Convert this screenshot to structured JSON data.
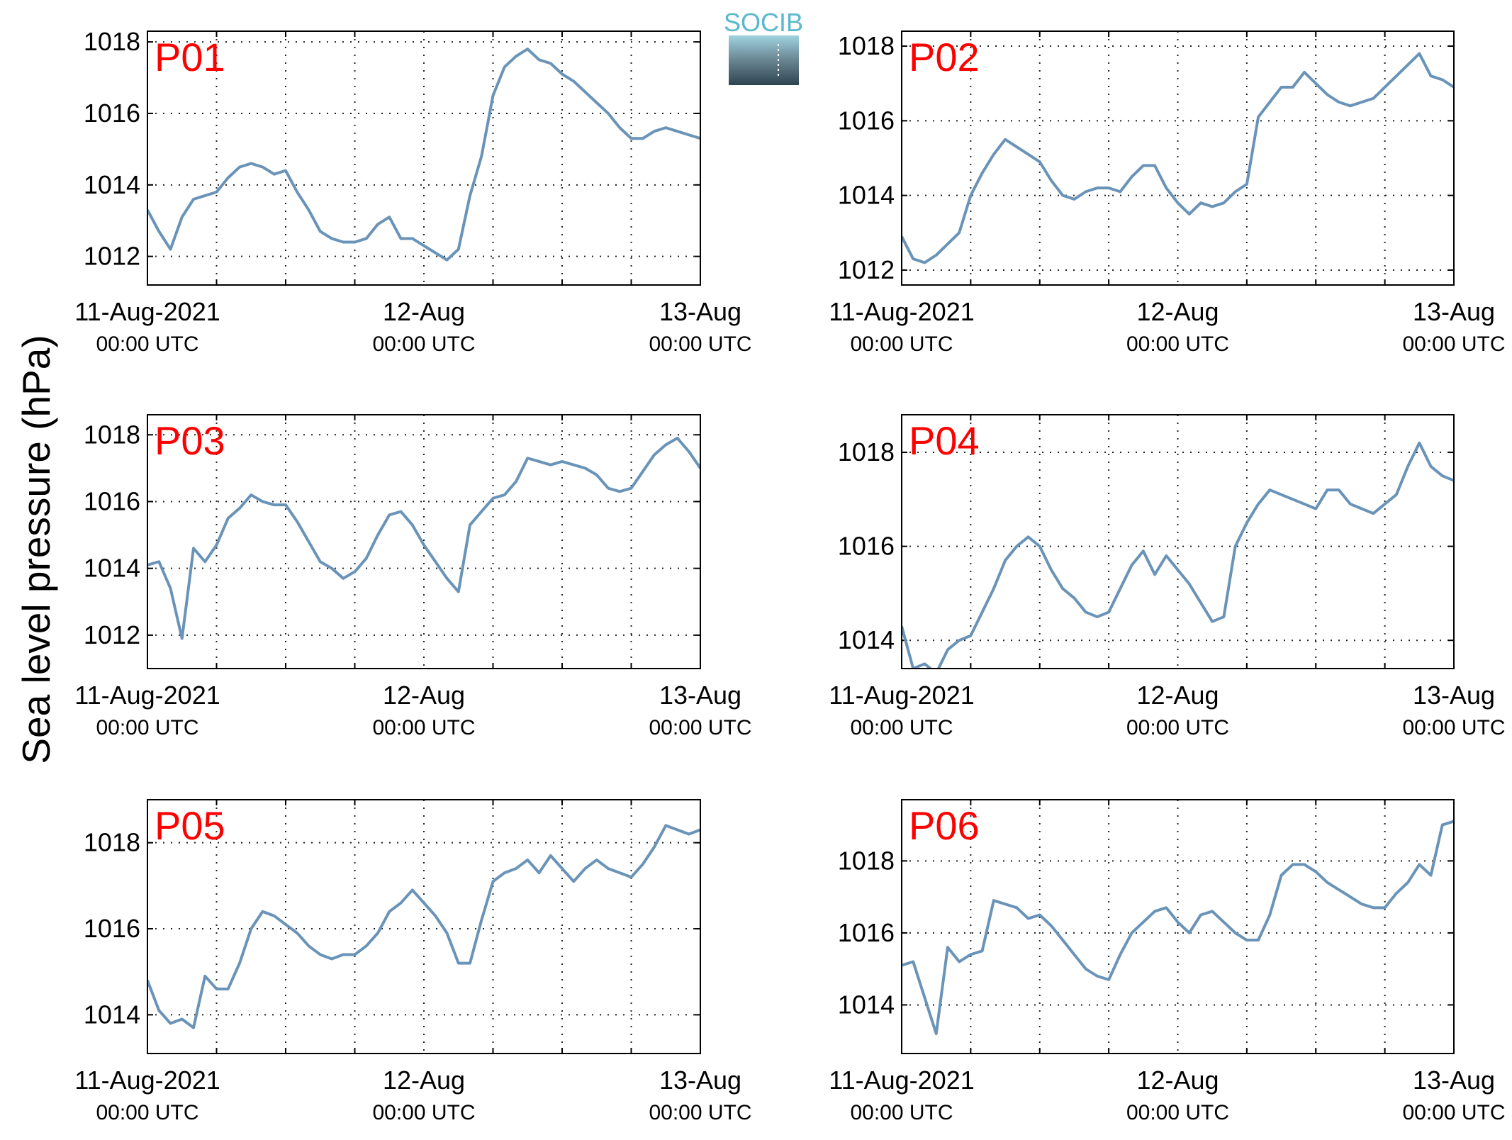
{
  "logo": "SOCIB",
  "ylabel": "Sea level pressure (hPa)",
  "chart_data": [
    {
      "type": "line",
      "title": "P01",
      "title_color": "#ff0000",
      "color": "#6a93b8",
      "grid": true,
      "xlim": [
        0,
        48
      ],
      "ylim": [
        1011.2,
        1018.3
      ],
      "yticks": [
        1012,
        1014,
        1016,
        1018
      ],
      "xticks": [
        {
          "value": 0,
          "label": "11-Aug-2021",
          "sublabel": "00:00 UTC"
        },
        {
          "value": 24,
          "label": "12-Aug",
          "sublabel": "00:00 UTC"
        },
        {
          "value": 48,
          "label": "13-Aug",
          "sublabel": "00:00 UTC"
        }
      ],
      "xminor": [
        6,
        12,
        18,
        30,
        36,
        42
      ],
      "x": [
        0,
        1,
        2,
        3,
        4,
        5,
        6,
        7,
        8,
        9,
        10,
        11,
        12,
        13,
        14,
        15,
        16,
        17,
        18,
        19,
        20,
        21,
        22,
        23,
        24,
        25,
        26,
        27,
        28,
        29,
        30,
        31,
        32,
        33,
        34,
        35,
        36,
        37,
        38,
        39,
        40,
        41,
        42,
        43,
        44,
        45,
        46,
        47,
        48
      ],
      "values": [
        1013.3,
        1012.7,
        1012.2,
        1013.1,
        1013.6,
        1013.7,
        1013.8,
        1014.2,
        1014.5,
        1014.6,
        1014.5,
        1014.3,
        1014.4,
        1013.8,
        1013.3,
        1012.7,
        1012.5,
        1012.4,
        1012.4,
        1012.5,
        1012.9,
        1013.1,
        1012.5,
        1012.5,
        1012.3,
        1012.1,
        1011.9,
        1012.2,
        1013.7,
        1014.8,
        1016.5,
        1017.3,
        1017.6,
        1017.8,
        1017.5,
        1017.4,
        1017.1,
        1016.9,
        1016.6,
        1016.3,
        1016.0,
        1015.6,
        1015.3,
        1015.3,
        1015.5,
        1015.6,
        1015.5,
        1015.4,
        1015.3
      ]
    },
    {
      "type": "line",
      "title": "P02",
      "title_color": "#ff0000",
      "color": "#6a93b8",
      "grid": true,
      "xlim": [
        0,
        48
      ],
      "ylim": [
        1011.6,
        1018.4
      ],
      "yticks": [
        1012,
        1014,
        1016,
        1018
      ],
      "xticks": [
        {
          "value": 0,
          "label": "11-Aug-2021",
          "sublabel": "00:00 UTC"
        },
        {
          "value": 24,
          "label": "12-Aug",
          "sublabel": "00:00 UTC"
        },
        {
          "value": 48,
          "label": "13-Aug",
          "sublabel": "00:00 UTC"
        }
      ],
      "xminor": [
        6,
        12,
        18,
        30,
        36,
        42
      ],
      "x": [
        0,
        1,
        2,
        3,
        4,
        5,
        6,
        7,
        8,
        9,
        10,
        11,
        12,
        13,
        14,
        15,
        16,
        17,
        18,
        19,
        20,
        21,
        22,
        23,
        24,
        25,
        26,
        27,
        28,
        29,
        30,
        31,
        32,
        33,
        34,
        35,
        36,
        37,
        38,
        39,
        40,
        41,
        42,
        43,
        44,
        45,
        46,
        47,
        48
      ],
      "values": [
        1012.9,
        1012.3,
        1012.2,
        1012.4,
        1012.7,
        1013.0,
        1014.0,
        1014.6,
        1015.1,
        1015.5,
        1015.3,
        1015.1,
        1014.9,
        1014.4,
        1014.0,
        1013.9,
        1014.1,
        1014.2,
        1014.2,
        1014.1,
        1014.5,
        1014.8,
        1014.8,
        1014.2,
        1013.8,
        1013.5,
        1013.8,
        1013.7,
        1013.8,
        1014.1,
        1014.3,
        1016.1,
        1016.5,
        1016.9,
        1016.9,
        1017.3,
        1017.0,
        1016.7,
        1016.5,
        1016.4,
        1016.5,
        1016.6,
        1016.9,
        1017.2,
        1017.5,
        1017.8,
        1017.2,
        1017.1,
        1016.9
      ]
    },
    {
      "type": "line",
      "title": "P03",
      "title_color": "#ff0000",
      "color": "#6a93b8",
      "grid": true,
      "xlim": [
        0,
        48
      ],
      "ylim": [
        1011.0,
        1018.6
      ],
      "yticks": [
        1012,
        1014,
        1016,
        1018
      ],
      "xticks": [
        {
          "value": 0,
          "label": "11-Aug-2021",
          "sublabel": "00:00 UTC"
        },
        {
          "value": 24,
          "label": "12-Aug",
          "sublabel": "00:00 UTC"
        },
        {
          "value": 48,
          "label": "13-Aug",
          "sublabel": "00:00 UTC"
        }
      ],
      "xminor": [
        6,
        12,
        18,
        30,
        36,
        42
      ],
      "x": [
        0,
        1,
        2,
        3,
        4,
        5,
        6,
        7,
        8,
        9,
        10,
        11,
        12,
        13,
        14,
        15,
        16,
        17,
        18,
        19,
        20,
        21,
        22,
        23,
        24,
        25,
        26,
        27,
        28,
        29,
        30,
        31,
        32,
        33,
        34,
        35,
        36,
        37,
        38,
        39,
        40,
        41,
        42,
        43,
        44,
        45,
        46,
        47,
        48
      ],
      "values": [
        1014.1,
        1014.2,
        1013.4,
        1011.9,
        1014.6,
        1014.2,
        1014.7,
        1015.5,
        1015.8,
        1016.2,
        1016.0,
        1015.9,
        1015.9,
        1015.4,
        1014.8,
        1014.2,
        1014.0,
        1013.7,
        1013.9,
        1014.3,
        1015.0,
        1015.6,
        1015.7,
        1015.3,
        1014.7,
        1014.2,
        1013.7,
        1013.3,
        1015.3,
        1015.7,
        1016.1,
        1016.2,
        1016.6,
        1017.3,
        1017.2,
        1017.1,
        1017.2,
        1017.1,
        1017.0,
        1016.8,
        1016.4,
        1016.3,
        1016.4,
        1016.9,
        1017.4,
        1017.7,
        1017.9,
        1017.5,
        1017.0
      ]
    },
    {
      "type": "line",
      "title": "P04",
      "title_color": "#ff0000",
      "color": "#6a93b8",
      "grid": true,
      "xlim": [
        0,
        48
      ],
      "ylim": [
        1013.4,
        1018.8
      ],
      "yticks": [
        1014,
        1016,
        1018
      ],
      "xticks": [
        {
          "value": 0,
          "label": "11-Aug-2021",
          "sublabel": "00:00 UTC"
        },
        {
          "value": 24,
          "label": "12-Aug",
          "sublabel": "00:00 UTC"
        },
        {
          "value": 48,
          "label": "13-Aug",
          "sublabel": "00:00 UTC"
        }
      ],
      "xminor": [
        6,
        12,
        18,
        30,
        36,
        42
      ],
      "x": [
        0,
        1,
        2,
        3,
        4,
        5,
        6,
        7,
        8,
        9,
        10,
        11,
        12,
        13,
        14,
        15,
        16,
        17,
        18,
        19,
        20,
        21,
        22,
        23,
        24,
        25,
        26,
        27,
        28,
        29,
        30,
        31,
        32,
        33,
        34,
        35,
        36,
        37,
        38,
        39,
        40,
        41,
        42,
        43,
        44,
        45,
        46,
        47,
        48
      ],
      "values": [
        1014.3,
        1013.4,
        1013.5,
        1013.3,
        1013.8,
        1014.0,
        1014.1,
        1014.6,
        1015.1,
        1015.7,
        1016.0,
        1016.2,
        1016.0,
        1015.5,
        1015.1,
        1014.9,
        1014.6,
        1014.5,
        1014.6,
        1015.1,
        1015.6,
        1015.9,
        1015.4,
        1015.8,
        1015.5,
        1015.2,
        1014.8,
        1014.4,
        1014.5,
        1016.0,
        1016.5,
        1016.9,
        1017.2,
        1017.1,
        1017.0,
        1016.9,
        1016.8,
        1017.2,
        1017.2,
        1016.9,
        1016.8,
        1016.7,
        1016.9,
        1017.1,
        1017.7,
        1018.2,
        1017.7,
        1017.5,
        1017.4
      ]
    },
    {
      "type": "line",
      "title": "P05",
      "title_color": "#ff0000",
      "color": "#6a93b8",
      "grid": true,
      "xlim": [
        0,
        48
      ],
      "ylim": [
        1013.1,
        1019.0
      ],
      "yticks": [
        1014,
        1016,
        1018
      ],
      "xticks": [
        {
          "value": 0,
          "label": "11-Aug-2021",
          "sublabel": "00:00 UTC"
        },
        {
          "value": 24,
          "label": "12-Aug",
          "sublabel": "00:00 UTC"
        },
        {
          "value": 48,
          "label": "13-Aug",
          "sublabel": "00:00 UTC"
        }
      ],
      "xminor": [
        6,
        12,
        18,
        30,
        36,
        42
      ],
      "x": [
        0,
        1,
        2,
        3,
        4,
        5,
        6,
        7,
        8,
        9,
        10,
        11,
        12,
        13,
        14,
        15,
        16,
        17,
        18,
        19,
        20,
        21,
        22,
        23,
        24,
        25,
        26,
        27,
        28,
        29,
        30,
        31,
        32,
        33,
        34,
        35,
        36,
        37,
        38,
        39,
        40,
        41,
        42,
        43,
        44,
        45,
        46,
        47,
        48
      ],
      "values": [
        1014.8,
        1014.1,
        1013.8,
        1013.9,
        1013.7,
        1014.9,
        1014.6,
        1014.6,
        1015.2,
        1016.0,
        1016.4,
        1016.3,
        1016.1,
        1015.9,
        1015.6,
        1015.4,
        1015.3,
        1015.4,
        1015.4,
        1015.6,
        1015.9,
        1016.4,
        1016.6,
        1016.9,
        1016.6,
        1016.3,
        1015.9,
        1015.2,
        1015.2,
        1016.2,
        1017.1,
        1017.3,
        1017.4,
        1017.6,
        1017.3,
        1017.7,
        1017.4,
        1017.1,
        1017.4,
        1017.6,
        1017.4,
        1017.3,
        1017.2,
        1017.5,
        1017.9,
        1018.4,
        1018.3,
        1018.2,
        1018.3
      ]
    },
    {
      "type": "line",
      "title": "P06",
      "title_color": "#ff0000",
      "color": "#6a93b8",
      "grid": true,
      "xlim": [
        0,
        48
      ],
      "ylim": [
        1012.65,
        1019.7
      ],
      "yticks": [
        1014,
        1016,
        1018
      ],
      "xticks": [
        {
          "value": 0,
          "label": "11-Aug-2021",
          "sublabel": "00:00 UTC"
        },
        {
          "value": 24,
          "label": "12-Aug",
          "sublabel": "00:00 UTC"
        },
        {
          "value": 48,
          "label": "13-Aug",
          "sublabel": "00:00 UTC"
        }
      ],
      "xminor": [
        6,
        12,
        18,
        30,
        36,
        42
      ],
      "x": [
        0,
        1,
        2,
        3,
        4,
        5,
        6,
        7,
        8,
        9,
        10,
        11,
        12,
        13,
        14,
        15,
        16,
        17,
        18,
        19,
        20,
        21,
        22,
        23,
        24,
        25,
        26,
        27,
        28,
        29,
        30,
        31,
        32,
        33,
        34,
        35,
        36,
        37,
        38,
        39,
        40,
        41,
        42,
        43,
        44,
        45,
        46,
        47,
        48
      ],
      "values": [
        1015.1,
        1015.2,
        1014.2,
        1013.2,
        1015.6,
        1015.2,
        1015.4,
        1015.5,
        1016.9,
        1016.8,
        1016.7,
        1016.4,
        1016.5,
        1016.2,
        1015.8,
        1015.4,
        1015.0,
        1014.8,
        1014.7,
        1015.4,
        1016.0,
        1016.3,
        1016.6,
        1016.7,
        1016.3,
        1016.0,
        1016.5,
        1016.6,
        1016.3,
        1016.0,
        1015.8,
        1015.8,
        1016.5,
        1017.6,
        1017.9,
        1017.9,
        1017.7,
        1017.4,
        1017.2,
        1017.0,
        1016.8,
        1016.7,
        1016.7,
        1017.1,
        1017.4,
        1017.9,
        1017.6,
        1019.0,
        1019.1
      ]
    }
  ]
}
